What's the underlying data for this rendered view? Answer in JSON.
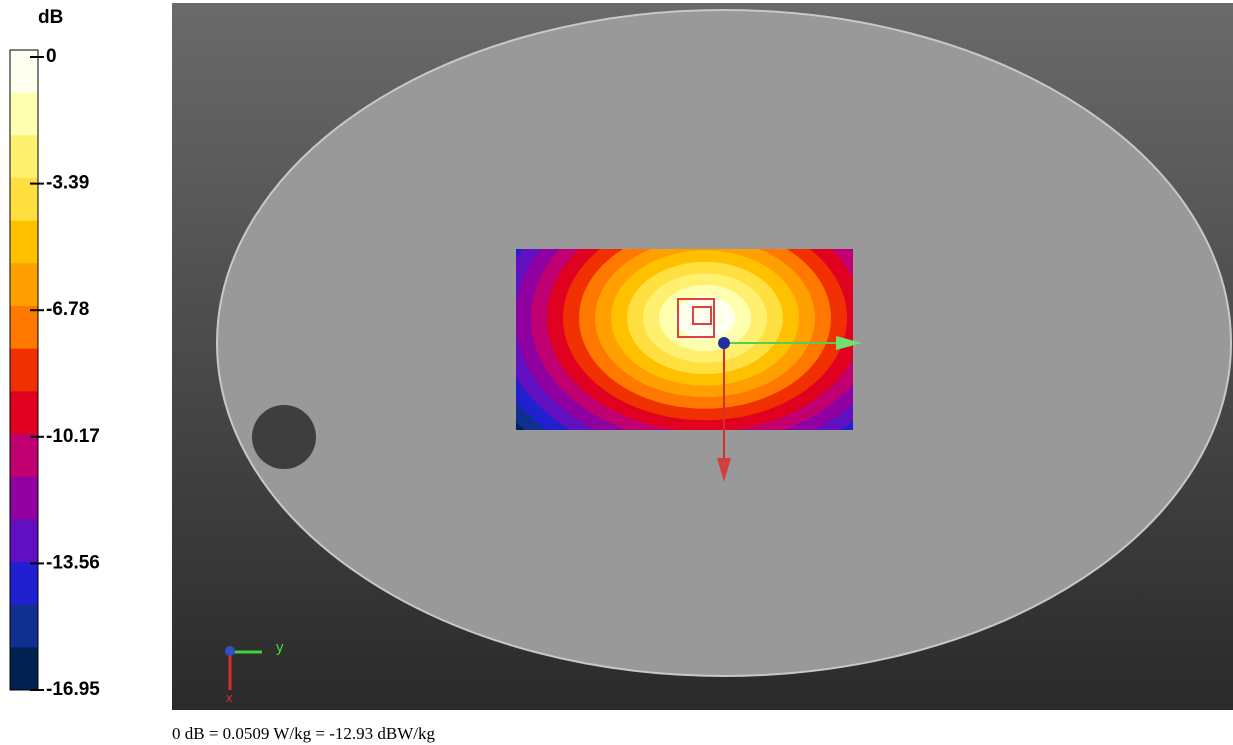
{
  "colorbar": {
    "unit": "dB",
    "ticks": [
      0,
      -3.39,
      -6.78,
      -10.17,
      -13.56,
      -16.95
    ]
  },
  "axis_icon": {
    "y_label": "y",
    "x_label": "x"
  },
  "caption": "0 dB = 0.0509 W/kg = -12.93 dBW/kg"
}
